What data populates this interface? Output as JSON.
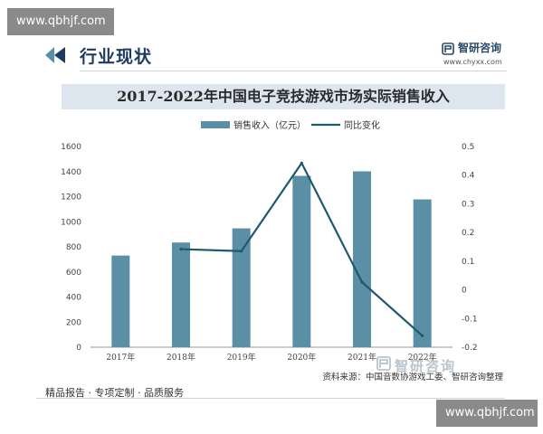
{
  "watermark_top": "www.qbhjf.com",
  "watermark_bottom": "www.qbhjf.com",
  "header": {
    "title": "行业现状",
    "logo_text": "智研咨询",
    "site": "www.chyxx.com"
  },
  "footer": {
    "tagline": "精品报告 · 专项定制 · 品质服务",
    "source": "资料来源：中国音数协游戏工委、智研咨询整理",
    "logo_text": "智研咨询"
  },
  "colors": {
    "bar": "#5b8fa6",
    "line": "#1d5a6b",
    "title_band": "#dde6ee",
    "header_text": "#1e3a5f"
  },
  "chart_data": {
    "type": "bar",
    "title": "2017-2022年中国电子竞技游戏市场实际销售收入",
    "categories": [
      "2017年",
      "2018年",
      "2019年",
      "2020年",
      "2021年",
      "2022年"
    ],
    "series": [
      {
        "name": "销售收入（亿元）",
        "type": "bar",
        "axis": "left",
        "values": [
          730.5,
          834.4,
          947.3,
          1365.6,
          1401.8,
          1178.0
        ]
      },
      {
        "name": "同比变化",
        "type": "line",
        "axis": "right",
        "values": [
          null,
          0.142,
          0.135,
          0.442,
          0.027,
          -0.16
        ]
      }
    ],
    "y_left": {
      "ticks": [
        "0",
        "200",
        "400",
        "600",
        "800",
        "1000",
        "1200",
        "1400",
        "1600"
      ],
      "ylim": [
        0,
        1600
      ]
    },
    "y_right": {
      "ticks": [
        "-0.2",
        "-0.1",
        "0",
        "0.1",
        "0.2",
        "0.3",
        "0.4",
        "0.5"
      ],
      "ylim": [
        -0.2,
        0.5
      ]
    },
    "legend_position": "top"
  }
}
